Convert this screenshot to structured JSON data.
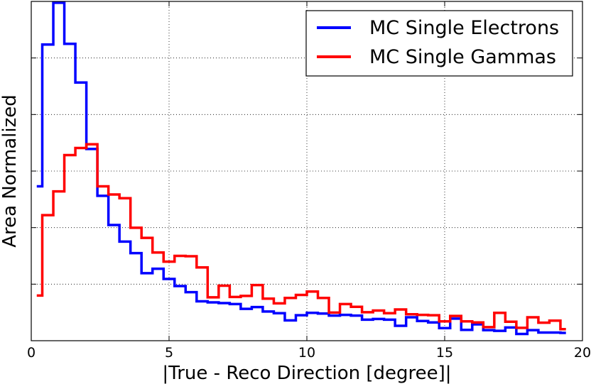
{
  "chart_data": {
    "type": "line",
    "style": "step-histogram",
    "title": "",
    "xlabel": "|True - Reco Direction [degree]|",
    "ylabel": "Area Normalized",
    "xlim": [
      0,
      20
    ],
    "ylim": [
      0,
      1
    ],
    "xticks": [
      0,
      5,
      10,
      15,
      20
    ],
    "xtick_labels": [
      "0",
      "5",
      "10",
      "15",
      "20"
    ],
    "y_tick_labels_shown": false,
    "grid": true,
    "legend_position": "top-right",
    "bin_edges": [
      0.2,
      0.4,
      0.8,
      1.2,
      1.6,
      2.0,
      2.4,
      2.8,
      3.2,
      3.6,
      4.0,
      4.4,
      4.8,
      5.2,
      5.6,
      6.0,
      6.4,
      6.8,
      7.2,
      7.6,
      8.0,
      8.4,
      8.8,
      9.2,
      9.6,
      10.0,
      10.4,
      10.8,
      11.2,
      11.6,
      12.0,
      12.4,
      12.8,
      13.2,
      13.6,
      14.0,
      14.4,
      14.8,
      15.2,
      15.6,
      16.0,
      16.4,
      16.8,
      17.2,
      17.6,
      18.0,
      18.4,
      18.8,
      19.2,
      19.4
    ],
    "series": [
      {
        "name": "MC Single Electrons",
        "color": "#0000ff",
        "values": [
          0.455,
          0.873,
          0.996,
          0.875,
          0.761,
          0.565,
          0.427,
          0.341,
          0.292,
          0.258,
          0.199,
          0.212,
          0.182,
          0.161,
          0.143,
          0.116,
          0.113,
          0.111,
          0.108,
          0.094,
          0.099,
          0.086,
          0.081,
          0.06,
          0.075,
          0.082,
          0.08,
          0.074,
          0.076,
          0.074,
          0.062,
          0.064,
          0.062,
          0.044,
          0.069,
          0.058,
          0.054,
          0.037,
          0.065,
          0.032,
          0.048,
          0.031,
          0.029,
          0.039,
          0.02,
          0.031,
          0.024,
          0.024,
          0.023
        ]
      },
      {
        "name": "MC Single Gammas",
        "color": "#ff0000",
        "values": [
          0.133,
          0.37,
          0.44,
          0.547,
          0.568,
          0.579,
          0.455,
          0.431,
          0.42,
          0.333,
          0.303,
          0.26,
          0.233,
          0.25,
          0.249,
          0.216,
          0.128,
          0.162,
          0.129,
          0.132,
          0.164,
          0.124,
          0.11,
          0.126,
          0.135,
          0.145,
          0.126,
          0.083,
          0.108,
          0.1,
          0.084,
          0.089,
          0.081,
          0.092,
          0.078,
          0.076,
          0.075,
          0.057,
          0.073,
          0.057,
          0.054,
          0.04,
          0.082,
          0.056,
          0.038,
          0.069,
          0.053,
          0.059,
          0.034
        ]
      }
    ]
  }
}
